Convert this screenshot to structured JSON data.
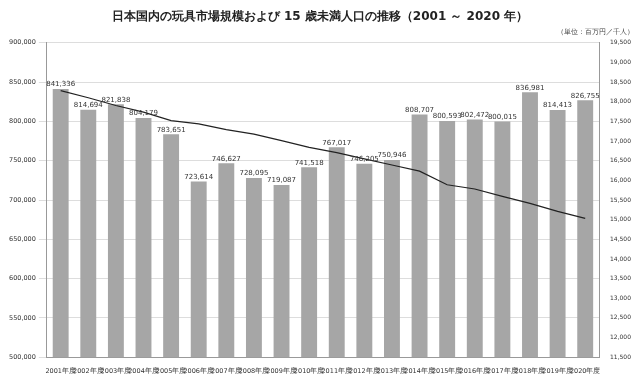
{
  "chart_data": {
    "type": "bar",
    "title": "日本国内の玩具市場規模および 15 歳未満人口の推移（2001 ～ 2020 年）",
    "subtitle": "（単位：百万円／千人）",
    "categories": [
      "2001年度",
      "2002年度",
      "2003年度",
      "2004年度",
      "2005年度",
      "2006年度",
      "2007年度",
      "2008年度",
      "2009年度",
      "2010年度",
      "2011年度",
      "2012年度",
      "2013年度",
      "2014年度",
      "2015年度",
      "2016年度",
      "2017年度",
      "2018年度",
      "2019年度",
      "2020年度"
    ],
    "series": [
      {
        "type": "bar",
        "color": "#a6a6a6",
        "data_labels": true,
        "values": [
          841336,
          814694,
          821838,
          804179,
          783651,
          723614,
          746627,
          728095,
          719087,
          741518,
          767017,
          746205,
          750946,
          808707,
          800593,
          802472,
          800015,
          836981,
          814413,
          826755
        ],
        "value_labels": [
          "841,336",
          "814,694",
          "821,838",
          "804,179",
          "783,651",
          "723,614",
          "746,627",
          "728,095",
          "719,087",
          "741,518",
          "767,017",
          "746,205",
          "750,946",
          "808,707",
          "800,593",
          "802,472",
          "800,015",
          "836,981",
          "814,413",
          "826,755"
        ]
      },
      {
        "type": "line",
        "axis": "y2",
        "color": "#222222",
        "marker": "none",
        "values": [
          18283,
          18102,
          17905,
          17734,
          17521,
          17435,
          17293,
          17176,
          17011,
          16839,
          16705,
          16547,
          16390,
          16233,
          15887,
          15780,
          15592,
          15415,
          15210,
          15032
        ]
      }
    ],
    "ylim": [
      500000,
      900000
    ],
    "yticks": [
      {
        "value": 500000,
        "label": "500,000"
      },
      {
        "value": 550000,
        "label": "550,000"
      },
      {
        "value": 600000,
        "label": "600,000"
      },
      {
        "value": 650000,
        "label": "650,000"
      },
      {
        "value": 700000,
        "label": "700,000"
      },
      {
        "value": 750000,
        "label": "750,000"
      },
      {
        "value": 800000,
        "label": "800,000"
      },
      {
        "value": 850000,
        "label": "850,000"
      },
      {
        "value": 900000,
        "label": "900,000"
      }
    ],
    "y2lim": [
      11500,
      19500
    ],
    "y2ticks": [
      {
        "value": 11500,
        "label": "11,500"
      },
      {
        "value": 12000,
        "label": "12,000"
      },
      {
        "value": 12500,
        "label": "12,500"
      },
      {
        "value": 13000,
        "label": "13,000"
      },
      {
        "value": 13500,
        "label": "13,500"
      },
      {
        "value": 14000,
        "label": "14,000"
      },
      {
        "value": 14500,
        "label": "14,500"
      },
      {
        "value": 15000,
        "label": "15,000"
      },
      {
        "value": 15500,
        "label": "15,500"
      },
      {
        "value": 16000,
        "label": "16,000"
      },
      {
        "value": 16500,
        "label": "16,500"
      },
      {
        "value": 17000,
        "label": "17,000"
      },
      {
        "value": 17500,
        "label": "17,500"
      },
      {
        "value": 18000,
        "label": "18,000"
      },
      {
        "value": 18500,
        "label": "18,500"
      },
      {
        "value": 19000,
        "label": "19,000"
      },
      {
        "value": 19500,
        "label": "19,500"
      }
    ],
    "grid": true
  }
}
